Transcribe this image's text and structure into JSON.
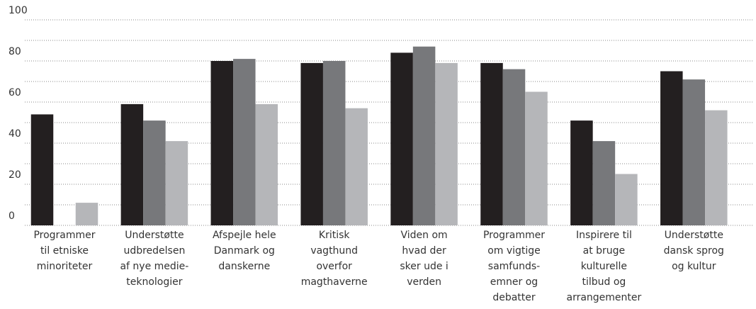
{
  "chart_data": {
    "type": "bar",
    "categories": [
      [
        "Programmer",
        "til etniske",
        "minoriteter"
      ],
      [
        "Understøtte",
        "udbredelsen",
        "af nye medie-",
        "teknologier"
      ],
      [
        "Afspejle hele",
        "Danmark og",
        "danskerne"
      ],
      [
        "Kritisk",
        "vagthund",
        "overfor",
        "magthaverne"
      ],
      [
        "Viden om",
        "hvad der",
        "sker ude i",
        "verden"
      ],
      [
        "Programmer",
        "om vigtige",
        "samfunds-",
        "emner og",
        "debatter"
      ],
      [
        "Inspirere til",
        "at bruge",
        "kulturelle",
        "tilbud og",
        "arrangementer"
      ],
      [
        "Understøtte",
        "dansk sprog",
        "og kultur"
      ]
    ],
    "series": [
      {
        "color": "#231f20",
        "values": [
          54,
          59,
          80,
          79,
          84,
          79,
          51,
          75
        ]
      },
      {
        "color": "#77787b",
        "values": [
          null,
          51,
          81,
          80,
          87,
          76,
          41,
          71
        ]
      },
      {
        "color": "#b5b6b9",
        "values": [
          11,
          41,
          59,
          57,
          79,
          65,
          25,
          56
        ]
      }
    ],
    "ylim": [
      0,
      100
    ],
    "yticks": [
      0,
      20,
      40,
      60,
      80,
      100
    ],
    "minor_yticks": [
      10,
      30,
      50,
      70,
      90
    ],
    "grid": true
  }
}
